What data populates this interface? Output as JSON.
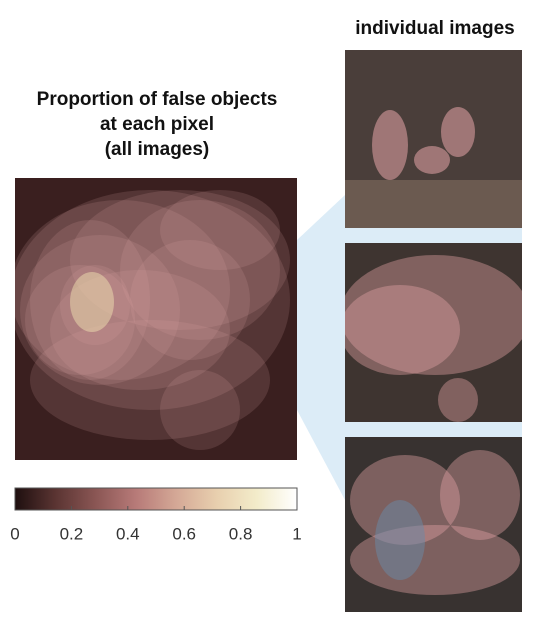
{
  "chart_data": {
    "type": "heatmap",
    "title": [
      "Proportion of false objects",
      "at each pixel",
      "(all images)"
    ],
    "panel_title": "individual images",
    "colormap": [
      "#1e0f0f",
      "#5a3432",
      "#8a5654",
      "#b77a78",
      "#d4a896",
      "#e8cfae",
      "#f3ecca",
      "#ffffff"
    ],
    "clim": [
      0,
      1
    ],
    "cticks": [
      0,
      0.2,
      0.4,
      0.6,
      0.8,
      1
    ]
  }
}
